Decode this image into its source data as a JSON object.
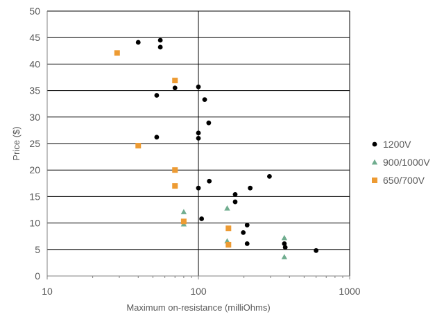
{
  "chart_data": {
    "type": "scatter",
    "xlabel": "Maximum on-resistance (milliOhms)",
    "ylabel": "Price ($)",
    "x_scale": "log",
    "xlim": [
      10,
      1000
    ],
    "ylim": [
      0,
      50
    ],
    "x_ticks": [
      "10",
      "100",
      "1000"
    ],
    "y_ticks": [
      "0",
      "5",
      "10",
      "15",
      "20",
      "25",
      "30",
      "35",
      "40",
      "45",
      "50"
    ],
    "grid": "on",
    "legend_position": "right",
    "series": [
      {
        "name": "1200V",
        "marker": "circle",
        "color": "#000000",
        "points": [
          [
            40,
            44.1
          ],
          [
            56,
            44.5
          ],
          [
            56,
            43.2
          ],
          [
            53,
            34.1
          ],
          [
            70,
            35.5
          ],
          [
            100,
            35.7
          ],
          [
            110,
            33.3
          ],
          [
            117,
            28.9
          ],
          [
            53,
            26.2
          ],
          [
            100,
            27.0
          ],
          [
            100,
            26.0
          ],
          [
            100,
            16.6
          ],
          [
            118,
            17.9
          ],
          [
            175,
            15.4
          ],
          [
            175,
            14.0
          ],
          [
            220,
            16.6
          ],
          [
            295,
            18.8
          ],
          [
            105,
            10.8
          ],
          [
            210,
            9.6
          ],
          [
            198,
            8.2
          ],
          [
            210,
            6.1
          ],
          [
            370,
            6.1
          ],
          [
            375,
            5.4
          ],
          [
            600,
            4.8
          ]
        ]
      },
      {
        "name": "900/1000V",
        "marker": "triangle",
        "color": "#70AD8F",
        "points": [
          [
            80,
            12.1
          ],
          [
            80,
            9.8
          ],
          [
            155,
            12.8
          ],
          [
            155,
            6.6
          ],
          [
            370,
            7.2
          ],
          [
            370,
            3.6
          ]
        ]
      },
      {
        "name": "650/700V",
        "marker": "square",
        "color": "#ED9B33",
        "points": [
          [
            29,
            42.1
          ],
          [
            70,
            36.9
          ],
          [
            40,
            24.6
          ],
          [
            70,
            20.0
          ],
          [
            70,
            17.0
          ],
          [
            80,
            10.3
          ],
          [
            158,
            9.0
          ],
          [
            158,
            5.9
          ]
        ]
      }
    ]
  }
}
